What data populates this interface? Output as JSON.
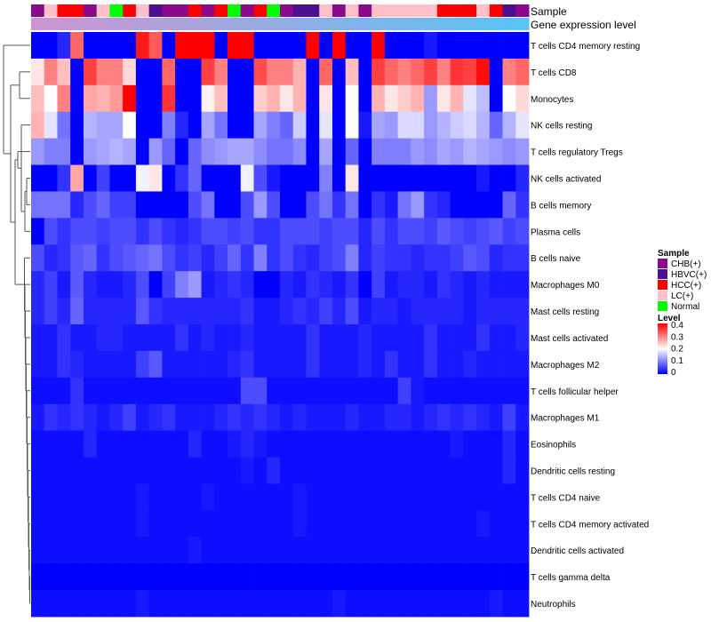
{
  "chart_data": {
    "type": "heatmap",
    "title": "",
    "annotation_rows": [
      "Sample",
      "Gene expression level"
    ],
    "legend_sample": {
      "title": "Sample",
      "entries": [
        {
          "label": "CHB(+)",
          "color": "#8B0A8B"
        },
        {
          "label": "HBVC(+)",
          "color": "#4B0F8F"
        },
        {
          "label": "HCC(+)",
          "color": "#FF0000"
        },
        {
          "label": "LC(+)",
          "color": "#FFC0CB"
        },
        {
          "label": "Normal",
          "color": "#00FF00"
        }
      ]
    },
    "legend_level": {
      "title": "Level",
      "ticks": [
        "0.4",
        "0.3",
        "0.2",
        "0.1",
        "0"
      ],
      "min": 0,
      "max": 0.4
    },
    "color_scale": {
      "low": "#0000FF",
      "mid": "#FFFFFF",
      "high": "#FF0000",
      "midpoint": 0.2,
      "max": 0.4
    },
    "samples": [
      "CHB(+)",
      "LC(+)",
      "HCC(+)",
      "HCC(+)",
      "CHB(+)",
      "LC(+)",
      "Normal",
      "HCC(+)",
      "LC(+)",
      "HBVC(+)",
      "CHB(+)",
      "CHB(+)",
      "HCC(+)",
      "CHB(+)",
      "HCC(+)",
      "Normal",
      "CHB(+)",
      "HCC(+)",
      "Normal",
      "CHB(+)",
      "HBVC(+)",
      "HBVC(+)",
      "LC(+)",
      "CHB(+)",
      "LC(+)",
      "CHB(+)",
      "LC(+)",
      "LC(+)",
      "LC(+)",
      "LC(+)",
      "LC(+)",
      "HCC(+)",
      "HCC(+)",
      "HCC(+)",
      "LC(+)",
      "HCC(+)",
      "HBVC(+)",
      "CHB(+)"
    ],
    "gene_expression_level": [
      0.1,
      0.1,
      0.1,
      0.1,
      0.1,
      0.1,
      0.1,
      0.1,
      0.1,
      0.1,
      0.1,
      0.1,
      0.1,
      0.1,
      0.1,
      0.1,
      0.1,
      0.1,
      0.1,
      0.1,
      0.1,
      0.1,
      0.1,
      0.1,
      0.1,
      0.1,
      0.1,
      0.1,
      0.1,
      0.1,
      0.1,
      0.1,
      0.1,
      0.1,
      0.1,
      0.1,
      0.1,
      0.1
    ],
    "rows": [
      {
        "name": "T cells CD4 memory resting",
        "values": [
          0.0,
          0.0,
          0.03,
          0.32,
          0.0,
          0.0,
          0.0,
          0.0,
          0.38,
          0.33,
          0.0,
          0.4,
          0.4,
          0.4,
          0.0,
          0.4,
          0.4,
          0.0,
          0.0,
          0.0,
          0.0,
          0.4,
          0.0,
          0.4,
          0.0,
          0.0,
          0.4,
          0.0,
          0.0,
          0.0,
          0.02,
          0.0,
          0.0,
          0.0,
          0.0,
          0.0,
          0.0,
          0.0
        ]
      },
      {
        "name": "T cells CD8",
        "values": [
          0.22,
          0.3,
          0.25,
          0.0,
          0.35,
          0.3,
          0.3,
          0.23,
          0.0,
          0.0,
          0.32,
          0.0,
          0.0,
          0.35,
          0.3,
          0.0,
          0.0,
          0.34,
          0.3,
          0.3,
          0.26,
          0.0,
          0.32,
          0.0,
          0.25,
          0.0,
          0.35,
          0.32,
          0.3,
          0.32,
          0.35,
          0.3,
          0.36,
          0.35,
          0.39,
          0.0,
          0.3,
          0.32
        ]
      },
      {
        "name": "Monocytes",
        "values": [
          0.25,
          0.2,
          0.3,
          0.0,
          0.27,
          0.26,
          0.28,
          0.4,
          0.0,
          0.0,
          0.36,
          0.0,
          0.0,
          0.21,
          0.25,
          0.0,
          0.0,
          0.24,
          0.26,
          0.22,
          0.26,
          0.0,
          0.22,
          0.0,
          0.2,
          0.0,
          0.26,
          0.22,
          0.24,
          0.26,
          0.12,
          0.22,
          0.26,
          0.18,
          0.15,
          0.0,
          0.2,
          0.23
        ]
      },
      {
        "name": "NK cells resting",
        "values": [
          0.26,
          0.18,
          0.09,
          0.0,
          0.14,
          0.13,
          0.13,
          0.2,
          0.0,
          0.0,
          0.1,
          0.03,
          0.0,
          0.13,
          0.09,
          0.0,
          0.0,
          0.13,
          0.1,
          0.08,
          0.16,
          0.0,
          0.18,
          0.0,
          0.2,
          0.02,
          0.13,
          0.12,
          0.17,
          0.17,
          0.12,
          0.14,
          0.16,
          0.17,
          0.14,
          0.08,
          0.14,
          0.18
        ]
      },
      {
        "name": "T cells regulatory  Tregs",
        "values": [
          0.12,
          0.1,
          0.1,
          0.0,
          0.12,
          0.13,
          0.14,
          0.13,
          0.0,
          0.12,
          0.08,
          0.0,
          0.08,
          0.11,
          0.12,
          0.13,
          0.13,
          0.11,
          0.09,
          0.09,
          0.11,
          0.0,
          0.13,
          0.0,
          0.08,
          0.0,
          0.1,
          0.1,
          0.1,
          0.12,
          0.11,
          0.13,
          0.12,
          0.14,
          0.13,
          0.12,
          0.11,
          0.12
        ]
      },
      {
        "name": "NK cells activated",
        "values": [
          0.0,
          0.0,
          0.04,
          0.27,
          0.0,
          0.05,
          0.0,
          0.0,
          0.19,
          0.22,
          0.0,
          0.04,
          0.08,
          0.0,
          0.0,
          0.0,
          0.19,
          0.06,
          0.02,
          0.0,
          0.0,
          0.0,
          0.1,
          0.0,
          0.22,
          0.0,
          0.0,
          0.0,
          0.0,
          0.0,
          0.0,
          0.0,
          0.0,
          0.0,
          0.02,
          0.0,
          0.0,
          0.03
        ]
      },
      {
        "name": "B cells memory",
        "values": [
          0.09,
          0.09,
          0.09,
          0.03,
          0.06,
          0.08,
          0.05,
          0.05,
          0.0,
          0.0,
          0.0,
          0.0,
          0.06,
          0.09,
          0.0,
          0.0,
          0.06,
          0.12,
          0.06,
          0.0,
          0.0,
          0.06,
          0.09,
          0.04,
          0.09,
          0.0,
          0.04,
          0.02,
          0.09,
          0.12,
          0.04,
          0.03,
          0.0,
          0.0,
          0.0,
          0.0,
          0.08,
          0.04
        ]
      },
      {
        "name": "Plasma cells",
        "values": [
          0.0,
          0.06,
          0.04,
          0.06,
          0.06,
          0.05,
          0.06,
          0.06,
          0.04,
          0.06,
          0.04,
          0.03,
          0.04,
          0.06,
          0.06,
          0.05,
          0.06,
          0.04,
          0.04,
          0.06,
          0.06,
          0.06,
          0.05,
          0.06,
          0.06,
          0.03,
          0.06,
          0.04,
          0.06,
          0.06,
          0.05,
          0.07,
          0.06,
          0.05,
          0.06,
          0.07,
          0.05,
          0.06
        ]
      },
      {
        "name": "B cells naive",
        "values": [
          0.06,
          0.03,
          0.04,
          0.07,
          0.08,
          0.04,
          0.06,
          0.07,
          0.08,
          0.09,
          0.06,
          0.04,
          0.05,
          0.03,
          0.05,
          0.08,
          0.04,
          0.1,
          0.04,
          0.06,
          0.04,
          0.03,
          0.05,
          0.06,
          0.1,
          0.03,
          0.05,
          0.04,
          0.04,
          0.03,
          0.04,
          0.04,
          0.05,
          0.07,
          0.06,
          0.03,
          0.04,
          0.04
        ]
      },
      {
        "name": "Macrophages M0",
        "values": [
          0.03,
          0.05,
          0.02,
          0.07,
          0.03,
          0.02,
          0.02,
          0.03,
          0.06,
          0.0,
          0.05,
          0.1,
          0.12,
          0.02,
          0.03,
          0.04,
          0.03,
          0.0,
          0.0,
          0.03,
          0.02,
          0.04,
          0.03,
          0.02,
          0.04,
          0.0,
          0.05,
          0.02,
          0.03,
          0.03,
          0.02,
          0.04,
          0.03,
          0.02,
          0.03,
          0.02,
          0.02,
          0.02
        ]
      },
      {
        "name": "Mast cells resting",
        "values": [
          0.03,
          0.05,
          0.03,
          0.08,
          0.03,
          0.03,
          0.03,
          0.03,
          0.07,
          0.04,
          0.03,
          0.03,
          0.03,
          0.03,
          0.03,
          0.03,
          0.04,
          0.02,
          0.02,
          0.03,
          0.04,
          0.03,
          0.05,
          0.03,
          0.06,
          0.02,
          0.03,
          0.03,
          0.02,
          0.03,
          0.03,
          0.03,
          0.03,
          0.02,
          0.03,
          0.03,
          0.03,
          0.03
        ]
      },
      {
        "name": "Mast cells activated",
        "values": [
          0.02,
          0.02,
          0.04,
          0.02,
          0.02,
          0.03,
          0.03,
          0.02,
          0.02,
          0.02,
          0.02,
          0.04,
          0.02,
          0.03,
          0.02,
          0.02,
          0.03,
          0.02,
          0.02,
          0.02,
          0.02,
          0.04,
          0.02,
          0.02,
          0.02,
          0.03,
          0.02,
          0.02,
          0.02,
          0.02,
          0.04,
          0.02,
          0.02,
          0.02,
          0.04,
          0.02,
          0.02,
          0.03
        ]
      },
      {
        "name": "Macrophages M2",
        "values": [
          0.02,
          0.02,
          0.04,
          0.03,
          0.02,
          0.02,
          0.02,
          0.02,
          0.05,
          0.07,
          0.02,
          0.02,
          0.02,
          0.02,
          0.02,
          0.03,
          0.04,
          0.02,
          0.02,
          0.02,
          0.02,
          0.04,
          0.02,
          0.02,
          0.02,
          0.03,
          0.02,
          0.04,
          0.02,
          0.02,
          0.04,
          0.02,
          0.02,
          0.03,
          0.02,
          0.02,
          0.02,
          0.02
        ]
      },
      {
        "name": "T cells follicular helper",
        "values": [
          0.01,
          0.01,
          0.01,
          0.04,
          0.01,
          0.01,
          0.01,
          0.01,
          0.01,
          0.01,
          0.01,
          0.01,
          0.01,
          0.01,
          0.01,
          0.01,
          0.06,
          0.06,
          0.01,
          0.01,
          0.01,
          0.01,
          0.01,
          0.01,
          0.01,
          0.01,
          0.01,
          0.01,
          0.05,
          0.02,
          0.01,
          0.01,
          0.01,
          0.01,
          0.01,
          0.01,
          0.01,
          0.01
        ]
      },
      {
        "name": "Macrophages M1",
        "values": [
          0.02,
          0.04,
          0.03,
          0.04,
          0.03,
          0.02,
          0.03,
          0.05,
          0.02,
          0.03,
          0.04,
          0.02,
          0.02,
          0.02,
          0.03,
          0.04,
          0.03,
          0.04,
          0.03,
          0.02,
          0.03,
          0.02,
          0.02,
          0.02,
          0.03,
          0.02,
          0.02,
          0.03,
          0.03,
          0.02,
          0.03,
          0.04,
          0.03,
          0.04,
          0.03,
          0.02,
          0.05,
          0.02
        ]
      },
      {
        "name": "Eosinophils",
        "values": [
          0.01,
          0.01,
          0.01,
          0.01,
          0.03,
          0.01,
          0.01,
          0.01,
          0.01,
          0.01,
          0.01,
          0.01,
          0.03,
          0.01,
          0.01,
          0.02,
          0.03,
          0.02,
          0.01,
          0.01,
          0.01,
          0.01,
          0.01,
          0.01,
          0.01,
          0.01,
          0.01,
          0.01,
          0.01,
          0.01,
          0.01,
          0.01,
          0.02,
          0.01,
          0.01,
          0.01,
          0.03,
          0.01
        ]
      },
      {
        "name": "Dendritic cells resting",
        "values": [
          0.01,
          0.01,
          0.01,
          0.01,
          0.01,
          0.01,
          0.01,
          0.01,
          0.01,
          0.01,
          0.01,
          0.01,
          0.01,
          0.01,
          0.01,
          0.01,
          0.02,
          0.01,
          0.03,
          0.01,
          0.01,
          0.01,
          0.01,
          0.01,
          0.01,
          0.01,
          0.01,
          0.01,
          0.01,
          0.01,
          0.01,
          0.01,
          0.01,
          0.01,
          0.01,
          0.01,
          0.03,
          0.01
        ]
      },
      {
        "name": "T cells CD4 naive",
        "values": [
          0.01,
          0.01,
          0.01,
          0.01,
          0.01,
          0.01,
          0.01,
          0.01,
          0.02,
          0.01,
          0.01,
          0.01,
          0.01,
          0.02,
          0.01,
          0.01,
          0.01,
          0.01,
          0.01,
          0.01,
          0.02,
          0.01,
          0.01,
          0.01,
          0.01,
          0.01,
          0.01,
          0.01,
          0.01,
          0.01,
          0.01,
          0.01,
          0.01,
          0.01,
          0.01,
          0.01,
          0.01,
          0.01
        ]
      },
      {
        "name": "T cells CD4 memory activated",
        "values": [
          0.01,
          0.01,
          0.01,
          0.01,
          0.01,
          0.01,
          0.01,
          0.01,
          0.02,
          0.01,
          0.01,
          0.01,
          0.01,
          0.01,
          0.01,
          0.01,
          0.01,
          0.01,
          0.01,
          0.01,
          0.02,
          0.01,
          0.01,
          0.01,
          0.01,
          0.01,
          0.01,
          0.01,
          0.01,
          0.01,
          0.01,
          0.01,
          0.01,
          0.01,
          0.02,
          0.01,
          0.01,
          0.01
        ]
      },
      {
        "name": "Dendritic cells activated",
        "values": [
          0.01,
          0.01,
          0.01,
          0.01,
          0.01,
          0.01,
          0.01,
          0.01,
          0.01,
          0.01,
          0.01,
          0.01,
          0.02,
          0.01,
          0.01,
          0.01,
          0.01,
          0.01,
          0.01,
          0.01,
          0.01,
          0.01,
          0.01,
          0.01,
          0.01,
          0.01,
          0.01,
          0.01,
          0.01,
          0.01,
          0.01,
          0.01,
          0.01,
          0.01,
          0.01,
          0.01,
          0.01,
          0.01
        ]
      },
      {
        "name": "T cells gamma delta",
        "values": [
          0.0,
          0.0,
          0.0,
          0.0,
          0.0,
          0.0,
          0.0,
          0.0,
          0.0,
          0.0,
          0.0,
          0.0,
          0.0,
          0.0,
          0.0,
          0.0,
          0.0,
          0.0,
          0.0,
          0.0,
          0.0,
          0.0,
          0.0,
          0.0,
          0.0,
          0.0,
          0.0,
          0.0,
          0.0,
          0.0,
          0.0,
          0.0,
          0.0,
          0.0,
          0.0,
          0.0,
          0.0,
          0.0
        ]
      },
      {
        "name": "Neutrophils",
        "values": [
          0.01,
          0.01,
          0.01,
          0.01,
          0.01,
          0.01,
          0.01,
          0.01,
          0.02,
          0.01,
          0.01,
          0.01,
          0.01,
          0.01,
          0.01,
          0.01,
          0.01,
          0.01,
          0.01,
          0.01,
          0.01,
          0.01,
          0.01,
          0.02,
          0.01,
          0.01,
          0.01,
          0.01,
          0.01,
          0.01,
          0.01,
          0.01,
          0.01,
          0.01,
          0.01,
          0.02,
          0.01,
          0.01
        ]
      }
    ]
  }
}
